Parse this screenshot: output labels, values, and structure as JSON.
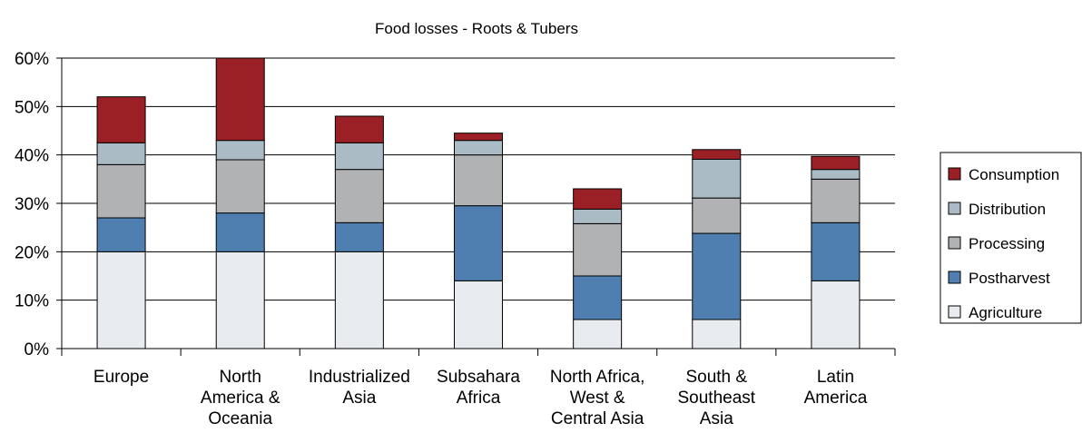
{
  "chart_data": {
    "type": "bar",
    "stacked": true,
    "title": "Food losses - Roots & Tubers",
    "xlabel": "",
    "ylabel": "",
    "ylim": [
      0,
      60
    ],
    "yticks": [
      "0%",
      "10%",
      "20%",
      "30%",
      "40%",
      "50%",
      "60%"
    ],
    "grid": true,
    "legend_position": "right",
    "categories": [
      [
        "Europe"
      ],
      [
        "North",
        "America &",
        "Oceania"
      ],
      [
        "Industrialized",
        "Asia"
      ],
      [
        "Subsahara",
        "Africa"
      ],
      [
        "North Africa,",
        "West &",
        "Central Asia"
      ],
      [
        "South &",
        "Southeast",
        "Asia"
      ],
      [
        "Latin",
        "America"
      ]
    ],
    "series": [
      {
        "name": "Agriculture",
        "color": "#e8ebef",
        "values": [
          20,
          20,
          20,
          14,
          6,
          6,
          14
        ]
      },
      {
        "name": "Postharvest",
        "color": "#4f7fb1",
        "values": [
          7,
          8,
          6,
          15.5,
          9,
          17.8,
          12
        ]
      },
      {
        "name": "Processing",
        "color": "#b1b2b4",
        "values": [
          11,
          11,
          11,
          10.5,
          10.8,
          7.3,
          9
        ]
      },
      {
        "name": "Distribution",
        "color": "#abbbc6",
        "values": [
          4.5,
          4,
          5.5,
          3,
          3,
          8,
          2
        ]
      },
      {
        "name": "Consumption",
        "color": "#9b2025",
        "values": [
          9.5,
          17,
          5.5,
          1.5,
          4.2,
          2,
          2.7
        ]
      }
    ]
  }
}
